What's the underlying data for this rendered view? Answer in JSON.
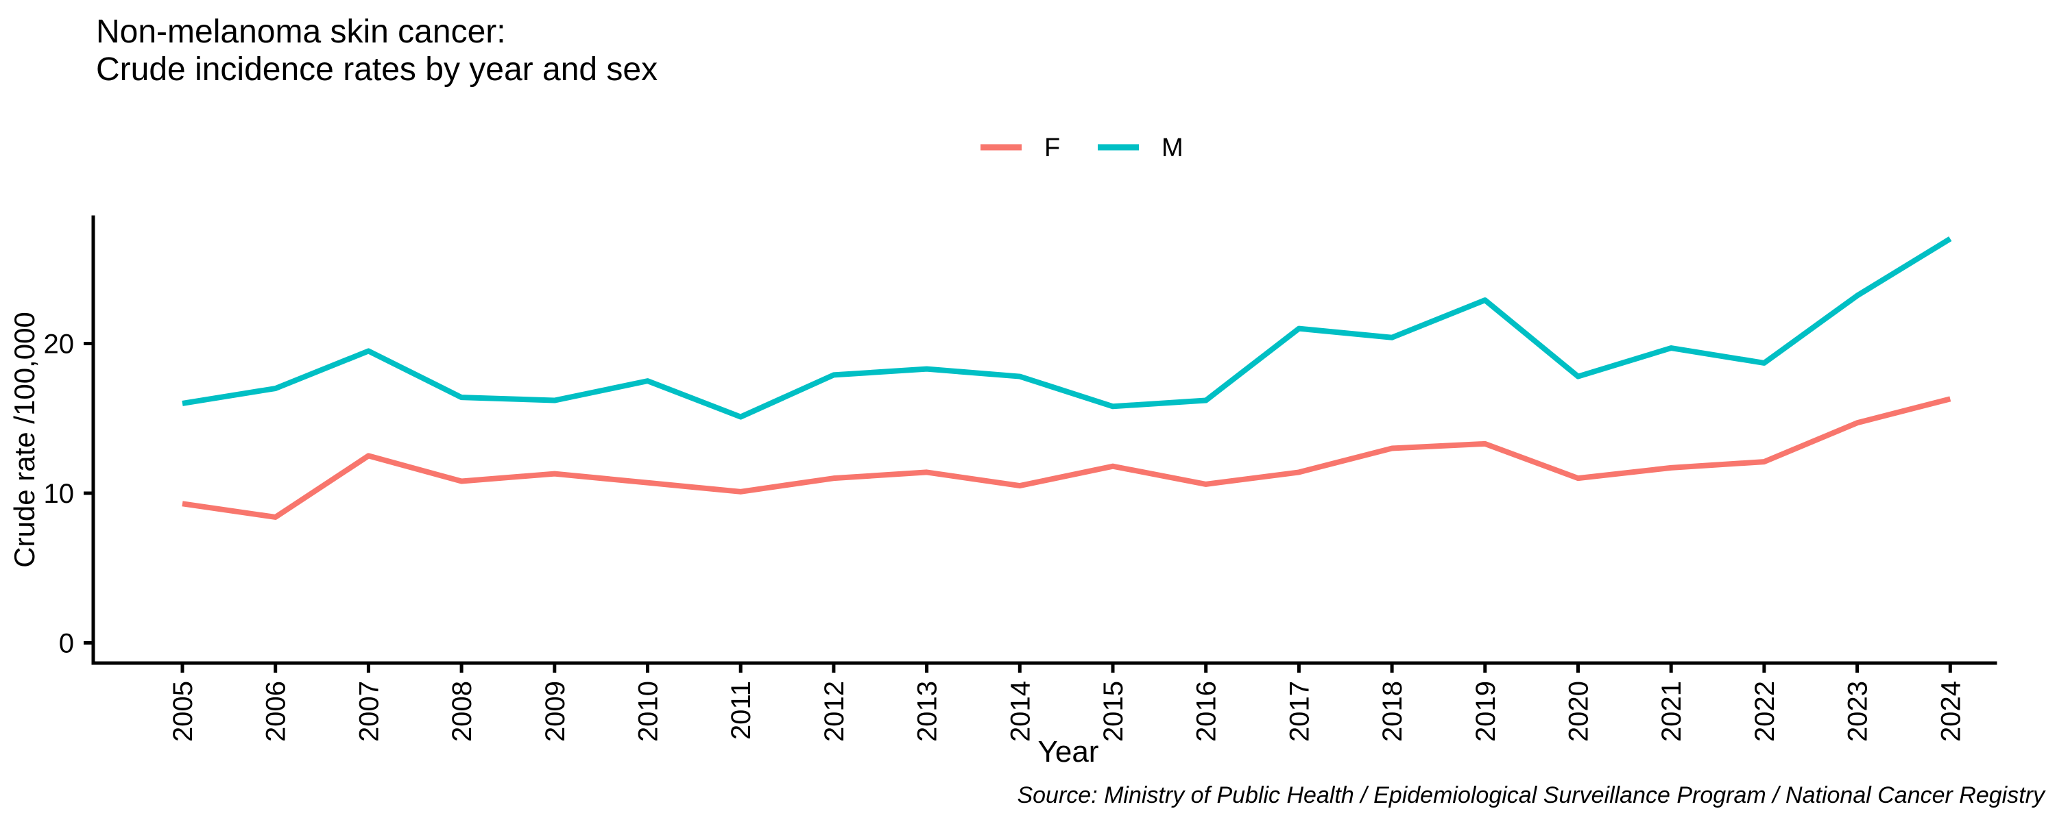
{
  "chart_data": {
    "type": "line",
    "title_lines": [
      "Non-melanoma skin cancer:",
      "Crude incidence rates by year and sex"
    ],
    "xlabel": "Year",
    "ylabel": "Crude rate /100,000",
    "categories": [
      2005,
      2006,
      2007,
      2008,
      2009,
      2010,
      2011,
      2012,
      2013,
      2014,
      2015,
      2016,
      2017,
      2018,
      2019,
      2020,
      2021,
      2022,
      2023,
      2024
    ],
    "series": [
      {
        "name": "F",
        "color": "#F8766D",
        "values": [
          9.3,
          8.4,
          12.5,
          10.8,
          11.3,
          10.7,
          10.1,
          11.0,
          11.4,
          10.5,
          11.8,
          10.6,
          11.4,
          13.0,
          13.3,
          11.0,
          11.7,
          12.1,
          14.7,
          16.3
        ]
      },
      {
        "name": "M",
        "color": "#00BFC4",
        "values": [
          16.0,
          17.0,
          19.5,
          16.4,
          16.2,
          17.5,
          15.1,
          17.9,
          18.3,
          17.8,
          15.8,
          16.2,
          21.0,
          20.4,
          22.9,
          17.8,
          19.7,
          18.7,
          23.2,
          27.0
        ]
      }
    ],
    "y_ticks": [
      0,
      10,
      20
    ],
    "ylim": [
      -1.4,
      28.5
    ],
    "grid": false,
    "legend_position": "top-center",
    "axis_color": "#000000",
    "background_color": "#FFFFFF"
  },
  "source_note": "Source: Ministry of Public Health / Epidemiological Surveillance Program / National Cancer Registry"
}
